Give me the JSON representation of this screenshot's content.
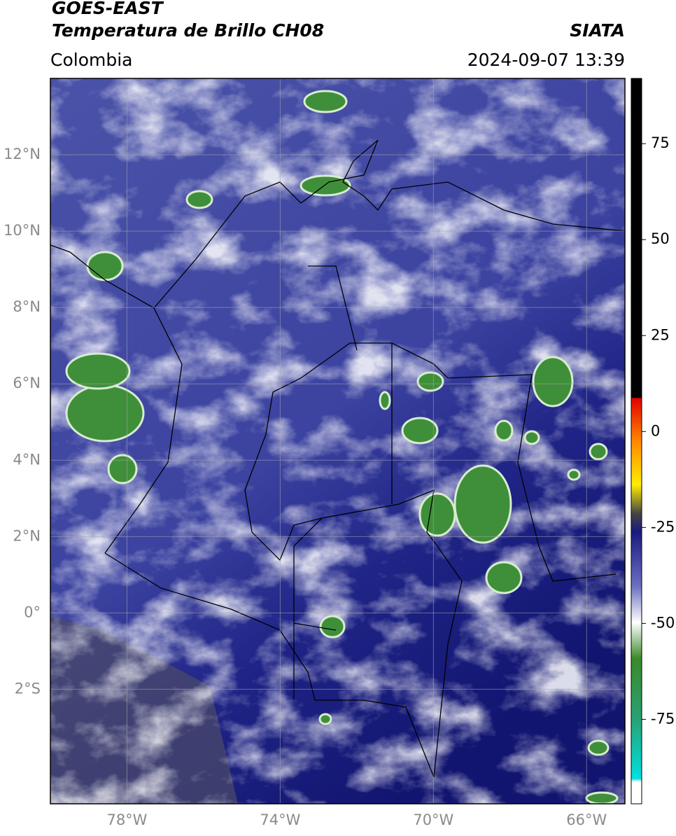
{
  "header": {
    "title": "GOES-EAST",
    "subtitle": "Temperatura de Brillo CH08",
    "source": "SIATA",
    "region": "Colombia",
    "timestamp": "2024-09-07 13:39"
  },
  "map": {
    "xlim": [
      -80,
      -65
    ],
    "ylim": [
      -5,
      14
    ],
    "xticks": [
      {
        "value": -78,
        "label": "78°W"
      },
      {
        "value": -74,
        "label": "74°W"
      },
      {
        "value": -70,
        "label": "70°W"
      },
      {
        "value": -66,
        "label": "66°W"
      }
    ],
    "yticks": [
      {
        "value": 12,
        "label": "12°N"
      },
      {
        "value": 10,
        "label": "10°N"
      },
      {
        "value": 8,
        "label": "8°N"
      },
      {
        "value": 6,
        "label": "6°N"
      },
      {
        "value": 4,
        "label": "4°N"
      },
      {
        "value": 2,
        "label": "2°N"
      },
      {
        "value": 0,
        "label": "0°"
      },
      {
        "value": -2,
        "label": "2°S"
      }
    ],
    "grid": true
  },
  "colorbar": {
    "lim": [
      -97,
      92
    ],
    "ticks": [
      75,
      50,
      25,
      0,
      -25,
      -50,
      -75
    ]
  }
}
